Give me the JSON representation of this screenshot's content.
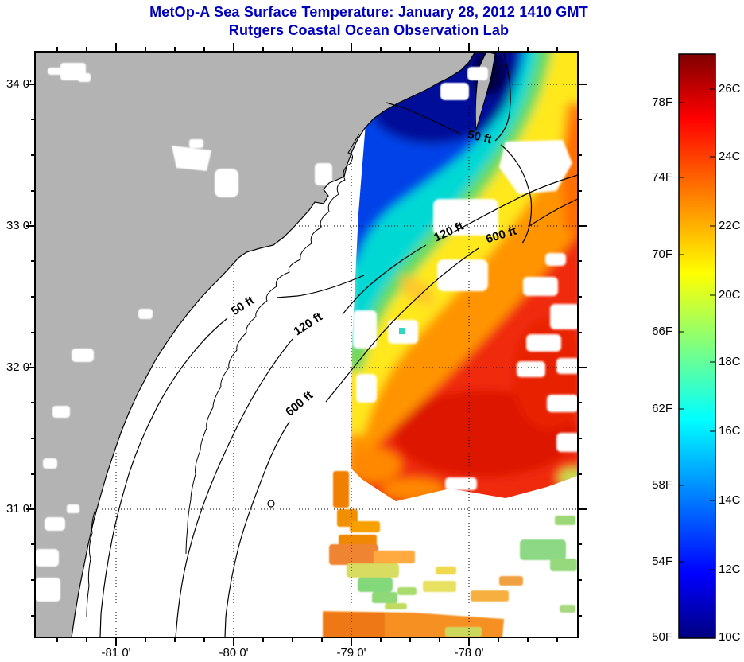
{
  "header": {
    "title_line1": "MetOp-A Sea Surface Temperature:  January 28, 2012 1410 GMT",
    "title_line2": "Rutgers Coastal Ocean Observation Lab",
    "title_color": "#0000BB"
  },
  "axes": {
    "y_labels": [
      "34 0'",
      "33 0'",
      "32 0'",
      "31 0'"
    ],
    "x_labels": [
      "-81 0'",
      "-80 0'",
      "-79 0'",
      "-78 0'"
    ]
  },
  "contours": {
    "labels": [
      "50 ft",
      "120 ft",
      "600 ft"
    ]
  },
  "colorbar": {
    "f_labels": [
      "78F",
      "74F",
      "70F",
      "66F",
      "62F",
      "58F",
      "54F",
      "50F"
    ],
    "c_labels": [
      "26C",
      "24C",
      "22C",
      "20C",
      "18C",
      "16C",
      "14C",
      "12C",
      "10C"
    ]
  },
  "colors": {
    "land": "#B3B3B3",
    "ocean_no_data": "#FFFFFF",
    "title_text": "#0000BB",
    "coldest": "#00007F",
    "warmest": "#7F0000"
  },
  "chart_data": {
    "type": "heatmap",
    "title": "MetOp-A Sea Surface Temperature:  January 28, 2012 1410 GMT",
    "subtitle": "Rutgers Coastal Ocean Observation Lab",
    "satellite": "MetOp-A",
    "observation_time": "January 28, 2012 1410 GMT",
    "x_axis": {
      "tick_labels": [
        "-81 0'",
        "-80 0'",
        "-79 0'",
        "-78 0'"
      ],
      "approx_range_deg_lon": [
        -81.7,
        -77.1
      ],
      "tick_interval": "15 minutes minor, 1 degree major"
    },
    "y_axis": {
      "tick_labels": [
        "34 0'",
        "33 0'",
        "32 0'",
        "31 0'"
      ],
      "approx_range_deg_lat": [
        30.1,
        34.2
      ],
      "tick_interval": "15 minutes minor, 1 degree major"
    },
    "grid": "dotted graticule at 1-degree intervals",
    "colorbar": {
      "colormap": "jet",
      "orientation": "vertical",
      "position": "right",
      "fahrenheit_ticks": [
        78,
        74,
        70,
        66,
        62,
        58,
        54,
        50
      ],
      "celsius_ticks": [
        26,
        24,
        22,
        20,
        18,
        16,
        14,
        12,
        10
      ],
      "range_celsius": [
        10,
        27
      ]
    },
    "depth_contours_ft": [
      50,
      120,
      600
    ],
    "features": [
      {
        "name": "cold nearshore water along northern coast",
        "approx_temp_c": "11-13"
      },
      {
        "name": "mid-shelf cyan/green water",
        "approx_temp_c": "15-18"
      },
      {
        "name": "yellow shelf-edge band",
        "approx_temp_c": "20-21"
      },
      {
        "name": "Gulf Stream warm core offshore",
        "approx_temp_c": "24-26"
      },
      {
        "name": "land (Carolinas / Georgia coast)",
        "color": "#B3B3B3"
      },
      {
        "name": "clouds / no data",
        "color": "#FFFFFF"
      },
      {
        "name": "satellite swath",
        "extent": "right portion of map, about -79.1 to -77.1 lon and 31.1 to 34.2 lat"
      }
    ]
  }
}
